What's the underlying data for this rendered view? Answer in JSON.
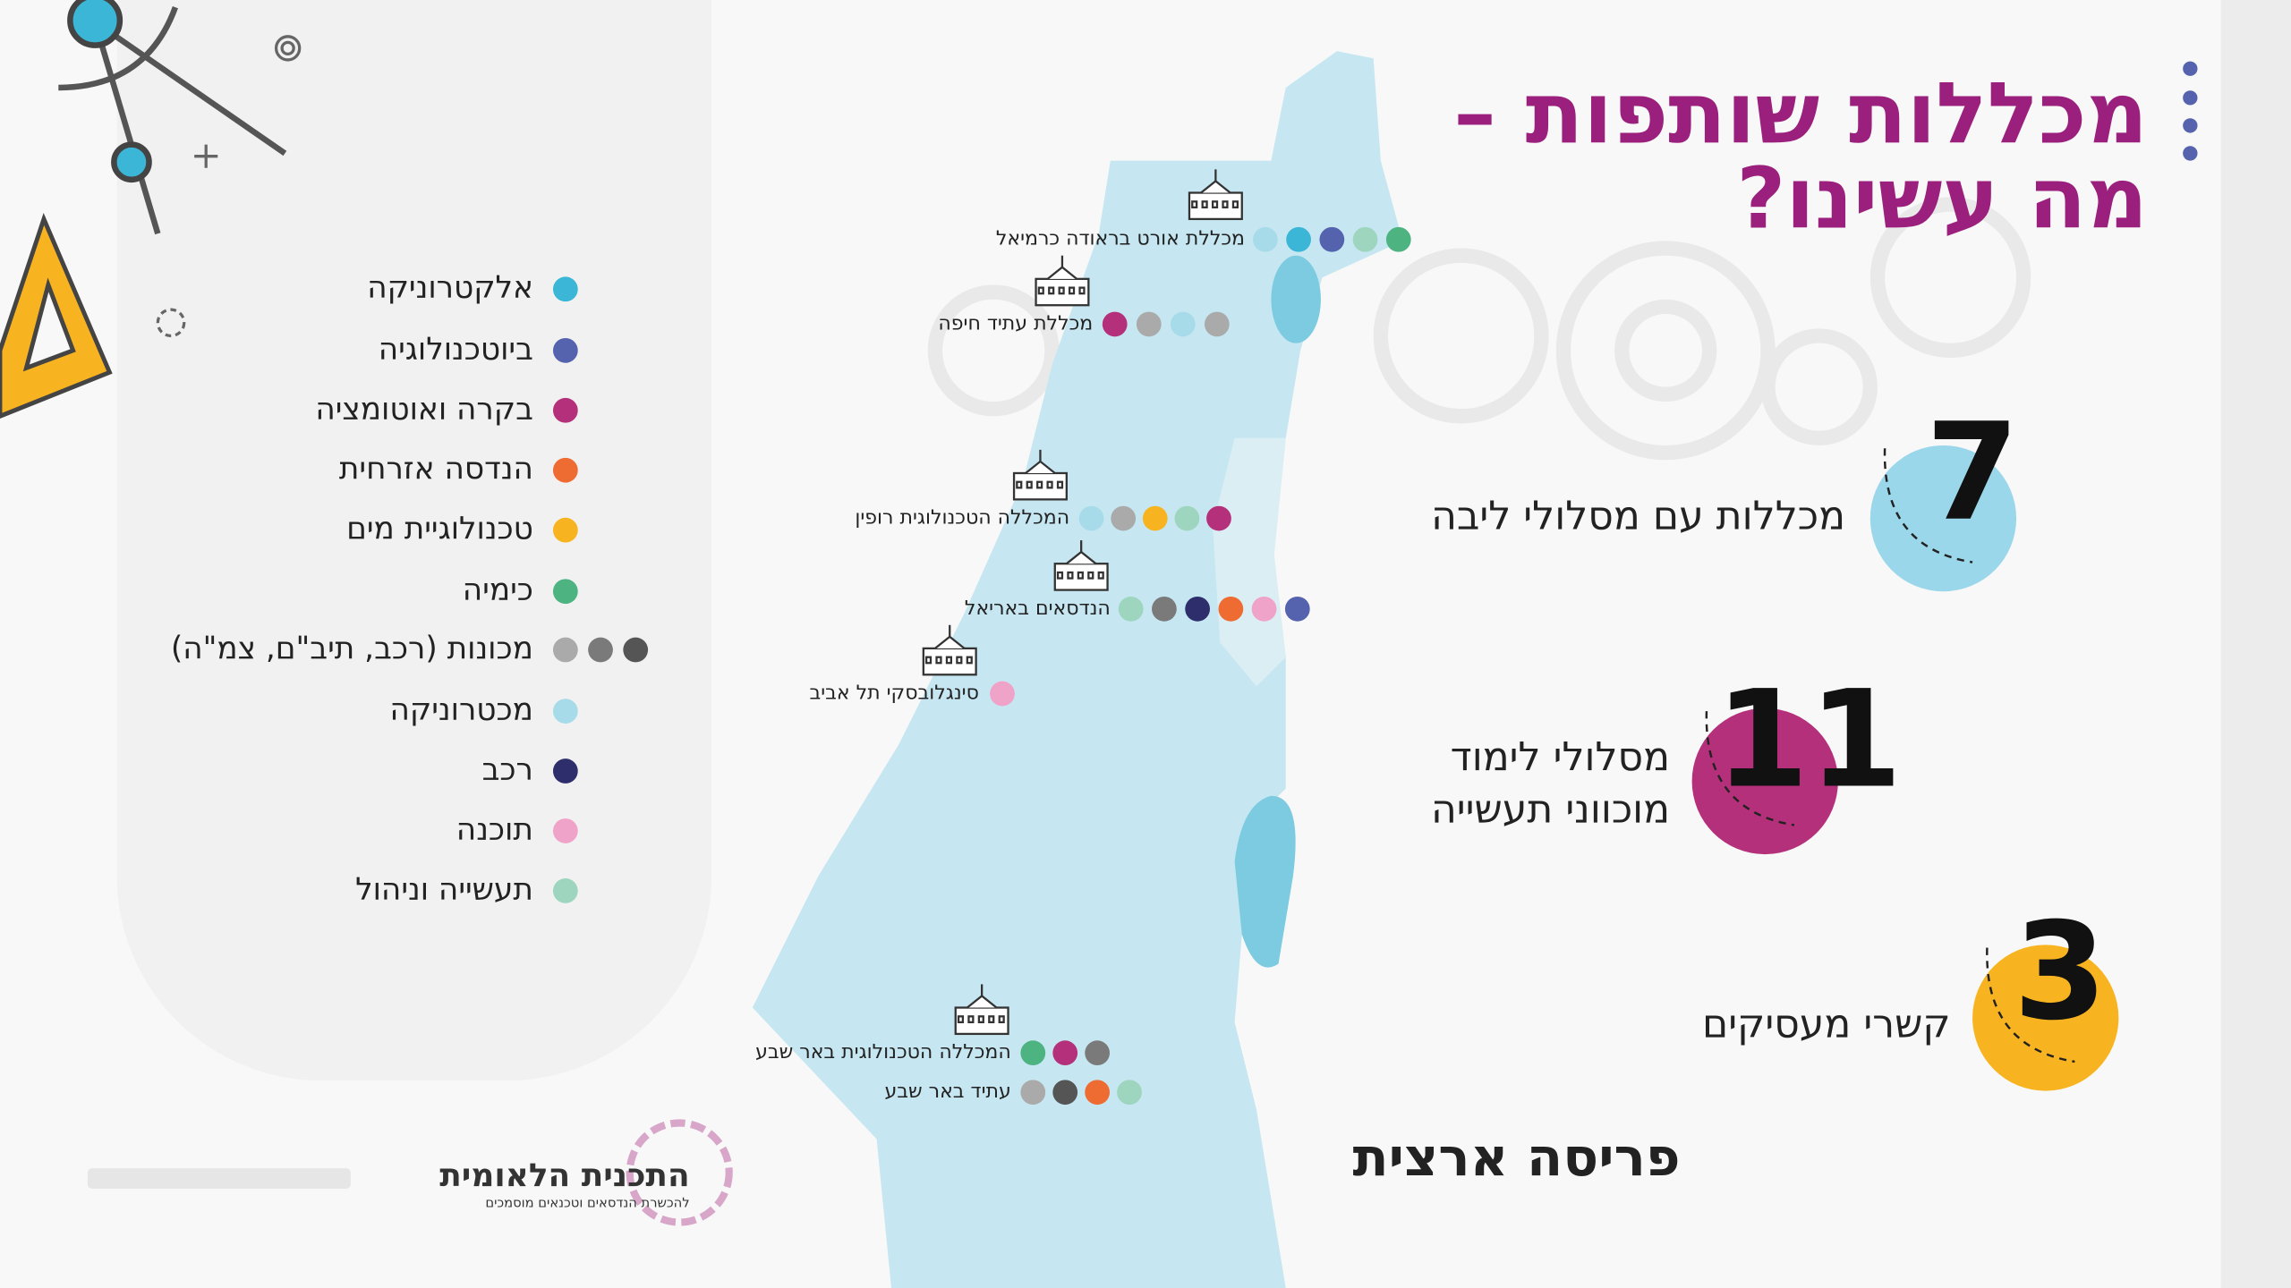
{
  "header": {
    "title_line_1": "מכללות שותפות –",
    "title_line_2": "מה עשינו?"
  },
  "legend": [
    {
      "label": "אלקטרוניקה",
      "colors": [
        "#3bb6d6"
      ]
    },
    {
      "label": "ביוטכנולוגיה",
      "colors": [
        "#5563ae"
      ]
    },
    {
      "label": "בקרה ואוטומציה",
      "colors": [
        "#b5307a"
      ]
    },
    {
      "label": "הנדסה אזרחית",
      "colors": [
        "#ee6b31"
      ]
    },
    {
      "label": "טכנולוגיית מים",
      "colors": [
        "#f7b420"
      ]
    },
    {
      "label": "כימיה",
      "colors": [
        "#4db380"
      ]
    },
    {
      "label": "מכונות (רכב, תיב\"ם, צמ\"ה)",
      "colors": [
        "#aaaaaa",
        "#7a7a7a",
        "#555555"
      ]
    },
    {
      "label": "מכטרוניקה",
      "colors": [
        "#a8dbe9"
      ]
    },
    {
      "label": "רכב",
      "colors": [
        "#2d2e6b"
      ]
    },
    {
      "label": "תוכנה",
      "colors": [
        "#f0a3c8"
      ]
    },
    {
      "label": "תעשייה וניהול",
      "colors": [
        "#9dd5bf"
      ]
    }
  ],
  "colleges": [
    {
      "name": "מכללת אורט בראודה כרמיאל",
      "colors": [
        "#a8dbe9",
        "#3bb6d6",
        "#5563ae",
        "#9dd5bf",
        "#4db380"
      ]
    },
    {
      "name": "מכללת עתיד חיפה",
      "colors": [
        "#b5307a",
        "#aaaaaa",
        "#a8dbe9",
        "#aaaaaa"
      ]
    },
    {
      "name": "המכללה הטכנולוגית רופין",
      "colors": [
        "#a8dbe9",
        "#aaaaaa",
        "#f7b420",
        "#9dd5bf",
        "#b5307a"
      ]
    },
    {
      "name": "הנדסאים באריאל",
      "colors": [
        "#9dd5bf",
        "#7a7a7a",
        "#2d2e6b",
        "#ee6b31",
        "#f0a3c8",
        "#5563ae"
      ]
    },
    {
      "name": "סינגלובסקי תל אביב",
      "colors": [
        "#f0a3c8"
      ]
    },
    {
      "name": "המכללה הטכנולוגית באר שבע",
      "colors": [
        "#4db380",
        "#b5307a",
        "#7a7a7a"
      ]
    },
    {
      "name": "עתיד באר שבע",
      "colors": [
        "#aaaaaa",
        "#555555",
        "#ee6b31",
        "#9dd5bf"
      ]
    }
  ],
  "stats": [
    {
      "number": 7,
      "label_lines": [
        "מכללות עם מסלולי ליבה"
      ],
      "color": "#9ad7ea"
    },
    {
      "number": 11,
      "label_lines": [
        "מסלולי לימוד",
        "מוכווני תעשייה"
      ],
      "color": "#b5307a"
    },
    {
      "number": 3,
      "label_lines": [
        "קשרי מעסיקים"
      ],
      "color": "#f7b420"
    }
  ],
  "footer": {
    "caption": "פריסה ארצית",
    "logo_title": "התכנית הלאומית",
    "logo_subtitle": "להכשרת הנדסאים וטכנאים מוסמכים"
  }
}
